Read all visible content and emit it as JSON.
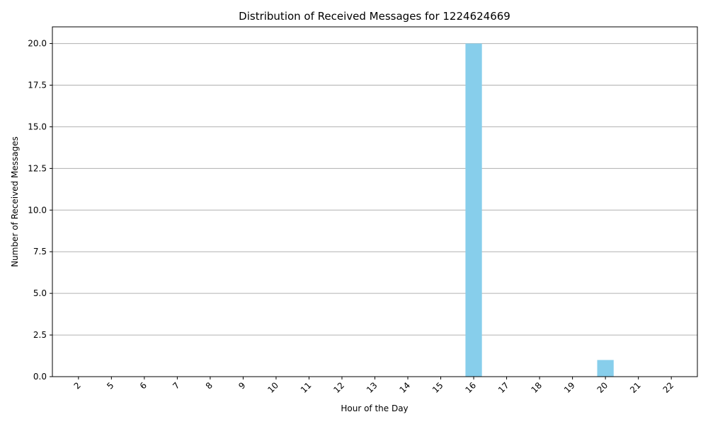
{
  "chart_data": {
    "type": "bar",
    "title": "Distribution of Received Messages for 1224624669",
    "xlabel": "Hour of the Day",
    "ylabel": "Number of Received Messages",
    "categories": [
      "2",
      "5",
      "6",
      "7",
      "8",
      "9",
      "10",
      "11",
      "12",
      "13",
      "14",
      "15",
      "16",
      "17",
      "18",
      "19",
      "20",
      "21",
      "22"
    ],
    "values": [
      0,
      0,
      0,
      0,
      0,
      0,
      0,
      0,
      0,
      0,
      0,
      0,
      20,
      0,
      0,
      0,
      1,
      0,
      0
    ],
    "ylim": [
      0,
      21
    ],
    "yticks": [
      "0.0",
      "2.5",
      "5.0",
      "7.5",
      "10.0",
      "12.5",
      "15.0",
      "17.5",
      "20.0"
    ],
    "grid": "y-axis only",
    "x_tick_rotation_deg": 45,
    "bar_color": "#87ceeb",
    "grid_color": "#b0b0b0"
  }
}
